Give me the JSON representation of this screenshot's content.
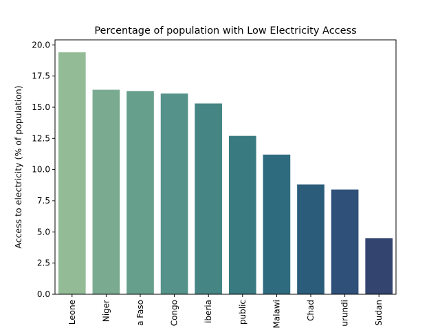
{
  "chart_data": {
    "type": "bar",
    "title": "Percentage of population with Low Electricity Access",
    "xlabel": "",
    "ylabel": "Access to electricity (% of population)",
    "ylim": [
      0,
      20.4
    ],
    "yticks": [
      "0.0",
      "2.5",
      "5.0",
      "7.5",
      "10.0",
      "12.5",
      "15.0",
      "17.5",
      "20.0"
    ],
    "categories": [
      "Leone",
      "Niger",
      "a Faso",
      "Congo",
      "iberia",
      "public",
      "Malawi",
      "Chad",
      "urundi",
      "Sudan"
    ],
    "values": [
      19.4,
      16.4,
      16.3,
      16.1,
      15.3,
      12.7,
      11.2,
      8.8,
      8.4,
      4.5
    ],
    "colors": [
      "#93bb96",
      "#7aab91",
      "#66a08d",
      "#55928a",
      "#458584",
      "#387a80",
      "#2f6b7e",
      "#2b5d7b",
      "#2f5079",
      "#33446f"
    ],
    "grid": false,
    "legend": "none"
  }
}
